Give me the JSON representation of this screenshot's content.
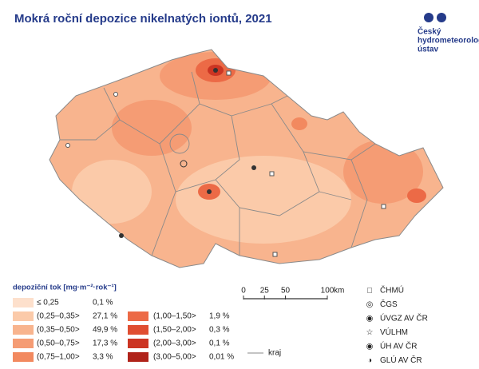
{
  "title": "Mokrá roční depozice nikelnatých iontů, 2021",
  "logo": [
    "Český",
    "hydrometeorologický",
    "ústav"
  ],
  "legend": {
    "title": "depoziční tok [mg·m⁻²·rok⁻¹]",
    "classes": [
      {
        "label": "≤ 0,25",
        "share": "0,1 %",
        "color": "#fde0cc"
      },
      {
        "label": "(0,25–0,35>",
        "share": "27,1 %",
        "color": "#fbcaa9"
      },
      {
        "label": "(0,35–0,50>",
        "share": "49,9 %",
        "color": "#f8b48e"
      },
      {
        "label": "(0,50–0,75>",
        "share": "17,3 %",
        "color": "#f59c74"
      },
      {
        "label": "(0,75–1,00>",
        "share": "3,3 %",
        "color": "#f2895f"
      },
      {
        "label": "(1,00–1,50>",
        "share": "1,9 %",
        "color": "#ec6a46"
      },
      {
        "label": "(1,50–2,00>",
        "share": "0,3 %",
        "color": "#e04e31"
      },
      {
        "label": "(2,00–3,00>",
        "share": "0,1 %",
        "color": "#cc3523"
      },
      {
        "label": "(3,00–5,00>",
        "share": "0,01 %",
        "color": "#b0231a"
      }
    ]
  },
  "scale": {
    "ticks": [
      0,
      25,
      50,
      100
    ],
    "unit": "km"
  },
  "stations": [
    "ČHMÚ",
    "ČGS",
    "ÚVGZ AV ČR",
    "VÚLHM",
    "ÚH AV ČR",
    "GLÚ AV ČR"
  ],
  "boundary": "kraj"
}
